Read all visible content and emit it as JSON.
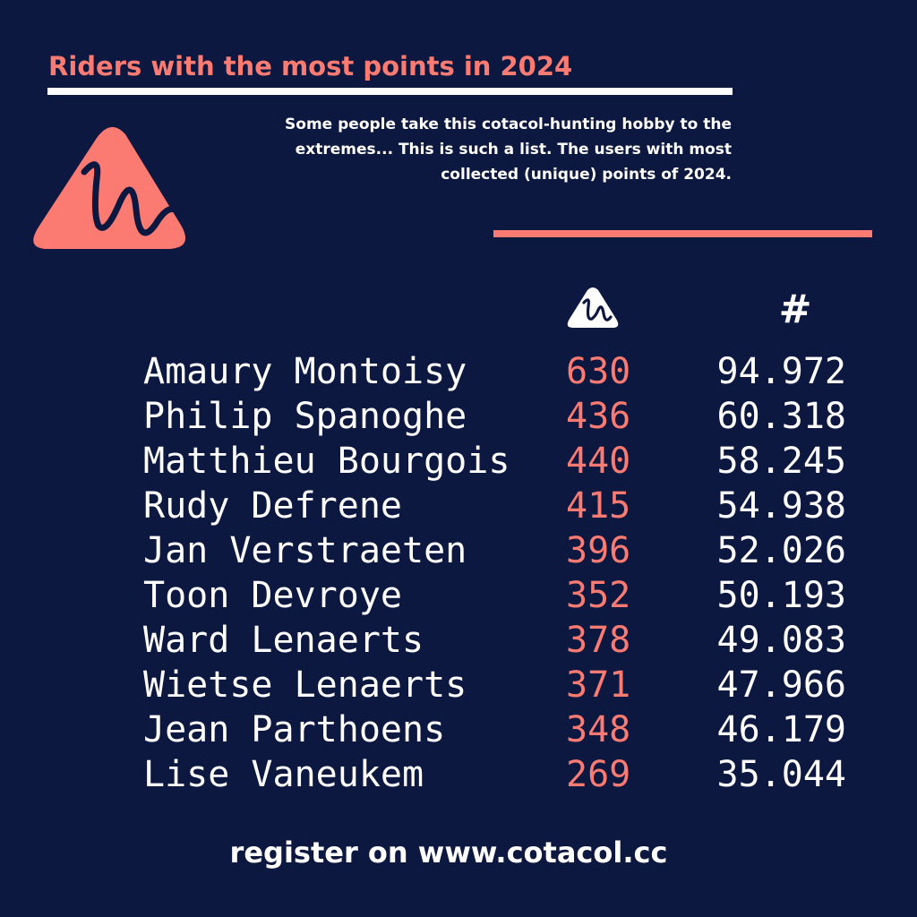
{
  "header": {
    "title": "Riders with the most points in 2024",
    "intro_lines": [
      "Some people take this cotacol-hunting hobby to the",
      "extremes...  This is such a list.  The users with most",
      "collected (unique) points of 2024."
    ]
  },
  "columns": {
    "peaks_icon": "cotacol-mountain-icon",
    "points_header": "#"
  },
  "riders": [
    {
      "name": "Amaury Montoisy",
      "peaks": "630",
      "points": "94.972"
    },
    {
      "name": "Philip Spanoghe",
      "peaks": "436",
      "points": "60.318"
    },
    {
      "name": "Matthieu Bourgois",
      "peaks": "440",
      "points": "58.245"
    },
    {
      "name": "Rudy Defrene",
      "peaks": "415",
      "points": "54.938"
    },
    {
      "name": "Jan Verstraeten",
      "peaks": "396",
      "points": "52.026"
    },
    {
      "name": "Toon Devroye",
      "peaks": "352",
      "points": "50.193"
    },
    {
      "name": "Ward Lenaerts",
      "peaks": "378",
      "points": "49.083"
    },
    {
      "name": "Wietse Lenaerts",
      "peaks": "371",
      "points": "47.966"
    },
    {
      "name": "Jean Parthoens",
      "peaks": "348",
      "points": "46.179"
    },
    {
      "name": "Lise Vaneukem",
      "peaks": "269",
      "points": "35.044"
    }
  ],
  "footer": {
    "text": "register on www.cotacol.cc"
  },
  "colors": {
    "background": "#0c1840",
    "accent": "#fb7b73",
    "text": "#ffffff"
  }
}
